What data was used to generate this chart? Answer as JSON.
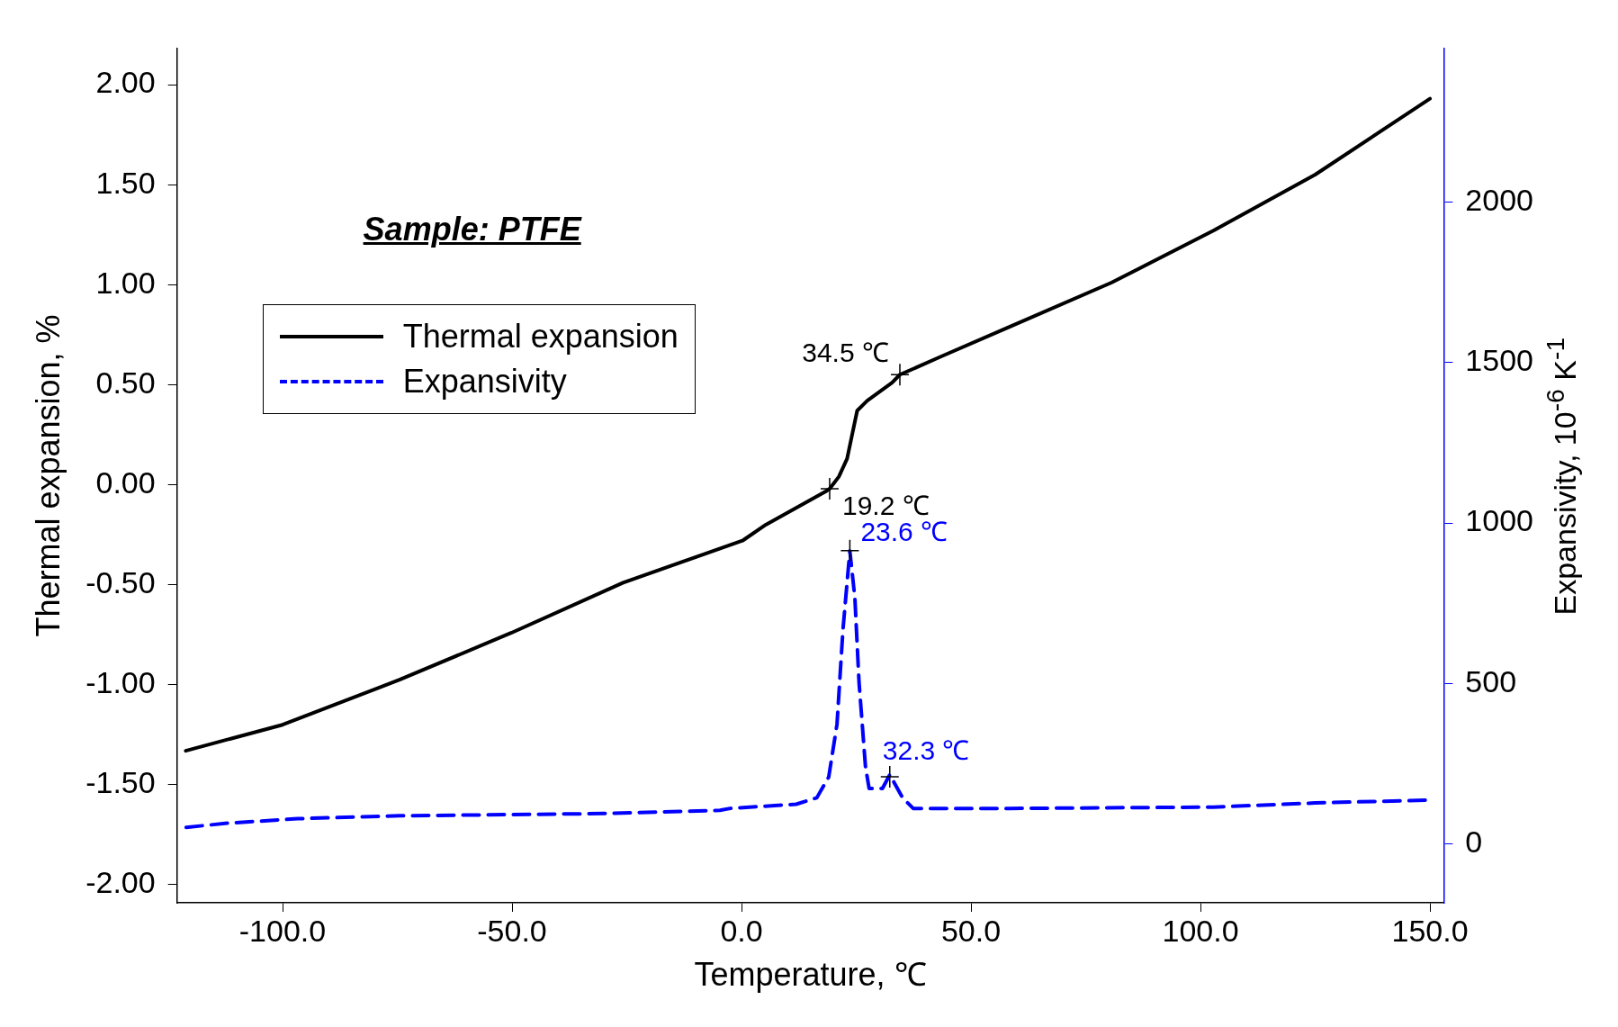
{
  "chart_data": {
    "type": "line",
    "xlabel": "Temperature, ℃",
    "ylabel": "Thermal expansion, %",
    "y2label": "Expansivity, 10$^{-6}$ K$^{-1}$",
    "annotations": [
      "Sample: PTFE",
      {
        "text": "34.5 ℃",
        "x": 34.5,
        "y": 0.55
      },
      {
        "text": "19.2 ℃",
        "x": 19.2,
        "y": -0.02
      },
      {
        "text": "23.6 ℃",
        "x": 23.6,
        "y": -0.33
      },
      {
        "text": "32.3 ℃",
        "x": 32.3,
        "y": -1.46
      }
    ],
    "legend": "top left",
    "grid": false,
    "marker": "none",
    "xlim": [
      -123,
      153
    ],
    "xticks": [
      {
        "value": -100,
        "label": "-100.0"
      },
      {
        "value": -50,
        "label": "-50.0"
      },
      {
        "value": 0,
        "label": "0.0"
      },
      {
        "value": 50,
        "label": "50.0"
      },
      {
        "value": 100,
        "label": "100.0"
      },
      {
        "value": 150,
        "label": "150.0"
      }
    ],
    "ylim": [
      -2.09,
      2.18
    ],
    "yticks": [
      {
        "value": -2,
        "label": "-2.00"
      },
      {
        "value": -1.5,
        "label": "-1.50"
      },
      {
        "value": -1,
        "label": "-1.00"
      },
      {
        "value": -0.5,
        "label": "-0.50"
      },
      {
        "value": 0,
        "label": "0.00"
      },
      {
        "value": 0.5,
        "label": "0.50"
      },
      {
        "value": 1,
        "label": "1.00"
      },
      {
        "value": 1.5,
        "label": "1.50"
      },
      {
        "value": 2,
        "label": "2.00"
      }
    ],
    "y2lim": [
      -183,
      2478
    ],
    "y2ticks": [
      0,
      500,
      1000,
      1500,
      2000
    ],
    "series": [
      {
        "name": "Thermal expansion",
        "color": "#000000",
        "line_style": "solid",
        "x": [
          -121.1,
          -100,
          -74.5,
          -50.1,
          -25.8,
          0.2,
          5.3,
          18.6,
          19.2,
          21.2,
          23,
          24.1,
          25.2,
          27.4,
          32.8,
          34.5,
          43.4,
          58.5,
          80.6,
          102.8,
          125,
          150
        ],
        "values": [
          -1.33,
          -1.2,
          -0.975,
          -0.74,
          -0.49,
          -0.28,
          -0.2,
          -0.03,
          -0.02,
          0.04,
          0.13,
          0.25,
          0.37,
          0.42,
          0.51,
          0.55,
          0.64,
          0.79,
          1.01,
          1.27,
          1.55,
          1.93
        ]
      },
      {
        "name": "Expansivity",
        "color": "#0000ff",
        "line_style": "dashed",
        "axis": "y2",
        "x": [
          -121,
          -112,
          -96.7,
          -74.5,
          -30,
          -4.7,
          -2.5,
          11.9,
          16.4,
          19,
          20.8,
          22.1,
          23.6,
          24.7,
          25.6,
          27,
          27.8,
          30.7,
          32.3,
          35.1,
          37.4,
          58.5,
          102.8,
          125,
          150
        ],
        "values": [
          52,
          65,
          79,
          88,
          95,
          105,
          111,
          124,
          144,
          209,
          373,
          668,
          913,
          766,
          504,
          242,
          173,
          173,
          216,
          144,
          111,
          111,
          115,
          128,
          137
        ]
      }
    ]
  }
}
